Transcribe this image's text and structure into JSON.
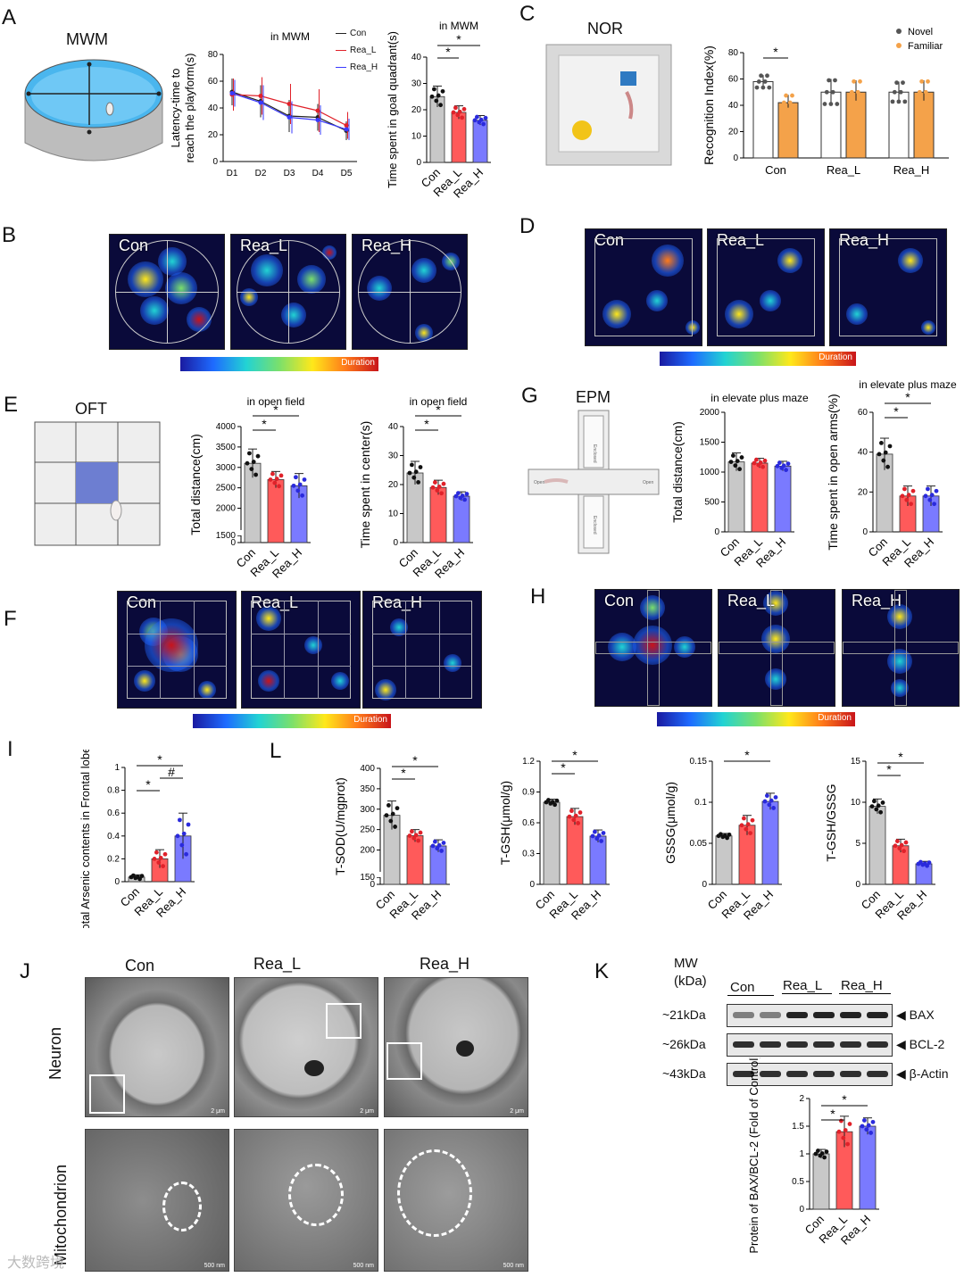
{
  "panel_labels": [
    "A",
    "B",
    "C",
    "D",
    "E",
    "F",
    "G",
    "H",
    "I",
    "J",
    "K",
    "L"
  ],
  "A": {
    "diagram_title": "MWM",
    "legend": [
      "Con",
      "Rea_L",
      "Rea_H"
    ]
  },
  "C": {
    "diagram_title": "NOR"
  },
  "E": {
    "diagram_title": "OFT"
  },
  "G": {
    "diagram_title": "EPM",
    "arm_labels": [
      "Enclosed",
      "Open",
      "Enclosed",
      "Open"
    ]
  },
  "groups": [
    "Con",
    "Rea_L",
    "Rea_H"
  ],
  "colorbar_label": "Duration",
  "J": {
    "cols": [
      "Con",
      "Rea_L",
      "Rea_H"
    ],
    "rows": [
      "Neuron",
      "Mitochondrion"
    ],
    "scale_bars": [
      "2 μm",
      "2 μm",
      "2 μm",
      "500 nm",
      "500 nm",
      "500 nm"
    ]
  },
  "K": {
    "mw_header": "MW\n(kDa)",
    "lanes": [
      "Con",
      "Rea_L",
      "Rea_H"
    ],
    "bands": [
      {
        "mw": "~21kDa",
        "name": "◀ BAX"
      },
      {
        "mw": "~26kDa",
        "name": "◀ BCL-2"
      },
      {
        "mw": "~43kDa",
        "name": "◀ β-Actin"
      }
    ]
  },
  "watermark": "大数跨境",
  "colors": {
    "con": "#c8c8c8",
    "rea_l": "#ff5a5a",
    "rea_h": "#7a7aff",
    "novel": "#555555",
    "familiar": "#f4a24a"
  },
  "chart_data": [
    {
      "id": "A-line",
      "type": "line",
      "title": "in MWM",
      "xlabel": "",
      "ylabel": "Latency-time to reach the playform(s)",
      "categories": [
        "D1",
        "D2",
        "D3",
        "D4",
        "D5"
      ],
      "ylim": [
        0,
        80
      ],
      "yticks": [
        0,
        20,
        40,
        60,
        80
      ],
      "series": [
        {
          "name": "Con",
          "values": [
            52,
            45,
            34,
            33,
            23
          ],
          "err": [
            10,
            12,
            12,
            10,
            7
          ]
        },
        {
          "name": "Rea_L",
          "values": [
            50,
            49,
            43,
            38,
            27
          ],
          "err": [
            12,
            14,
            15,
            16,
            10
          ]
        },
        {
          "name": "Rea_H",
          "values": [
            51,
            44,
            33,
            31,
            24
          ],
          "err": [
            10,
            13,
            12,
            11,
            8
          ]
        }
      ]
    },
    {
      "id": "A-bar",
      "type": "bar",
      "title": "in MWM",
      "ylabel": "Time spent in goal quadrant(s)",
      "categories": [
        "Con",
        "Rea_L",
        "Rea_H"
      ],
      "values": [
        25,
        19,
        16
      ],
      "err": [
        4,
        2.5,
        1.8
      ],
      "ylim": [
        0,
        40
      ],
      "yticks": [
        0,
        10,
        20,
        30,
        40
      ],
      "sig": [
        [
          "*",
          0,
          1
        ],
        [
          "*",
          0,
          2
        ]
      ]
    },
    {
      "id": "C-bar",
      "type": "bar",
      "title": "",
      "ylabel": "Recognition Index(%)",
      "categories": [
        "Con",
        "Rea_L",
        "Rea_H"
      ],
      "ylim": [
        0,
        80
      ],
      "yticks": [
        0,
        20,
        40,
        60,
        80
      ],
      "series": [
        {
          "name": "Novel",
          "values": [
            58,
            50,
            50
          ],
          "err": [
            5,
            10,
            8
          ]
        },
        {
          "name": "Familiar",
          "values": [
            42,
            50,
            50
          ],
          "err": [
            6,
            9,
            9
          ]
        }
      ],
      "sig": [
        [
          "*",
          0,
          0
        ]
      ]
    },
    {
      "id": "E-bar1",
      "type": "bar",
      "title": "in open field",
      "ylabel": "Total distance(cm)",
      "categories": [
        "Con",
        "Rea_L",
        "Rea_H"
      ],
      "values": [
        3100,
        2700,
        2550
      ],
      "err": [
        350,
        200,
        300
      ],
      "yticks": [
        0,
        1500,
        2000,
        2500,
        3000,
        3500,
        4000
      ],
      "sig": [
        [
          "*",
          0,
          1
        ],
        [
          "*",
          0,
          2
        ]
      ]
    },
    {
      "id": "E-bar2",
      "type": "bar",
      "title": "in open field",
      "ylabel": "Time spent in center(s)",
      "categories": [
        "Con",
        "Rea_L",
        "Rea_H"
      ],
      "values": [
        24,
        19,
        16
      ],
      "err": [
        4,
        2.5,
        1.5
      ],
      "ylim": [
        0,
        40
      ],
      "yticks": [
        0,
        10,
        20,
        30,
        40
      ],
      "sig": [
        [
          "*",
          0,
          1
        ],
        [
          "*",
          0,
          2
        ]
      ]
    },
    {
      "id": "G-bar1",
      "type": "bar",
      "title": "in elevate plus maze",
      "ylabel": "Total distance(cm)",
      "categories": [
        "Con",
        "Rea_L",
        "Rea_H"
      ],
      "values": [
        1170,
        1150,
        1100
      ],
      "err": [
        150,
        80,
        80
      ],
      "ylim": [
        0,
        2000
      ],
      "yticks": [
        0,
        500,
        1000,
        1500,
        2000
      ],
      "sig": []
    },
    {
      "id": "G-bar2",
      "type": "bar",
      "title": "in elevate plus maze",
      "ylabel": "Time spent in open arms(%)",
      "categories": [
        "Con",
        "Rea_L",
        "Rea_H"
      ],
      "values": [
        39,
        18,
        18
      ],
      "err": [
        8,
        5,
        5
      ],
      "ylim": [
        0,
        60
      ],
      "yticks": [
        0,
        20,
        40,
        60
      ],
      "sig": [
        [
          "*",
          0,
          1
        ],
        [
          "*",
          0,
          2
        ]
      ]
    },
    {
      "id": "I-bar",
      "type": "bar",
      "title": "",
      "ylabel": "Total Arsenic contents in Frontal lobe (μg/g)",
      "categories": [
        "Con",
        "Rea_L",
        "Rea_H"
      ],
      "values": [
        0.04,
        0.2,
        0.4
      ],
      "err": [
        0.02,
        0.08,
        0.2
      ],
      "ylim": [
        0,
        1
      ],
      "yticks": [
        0,
        0.2,
        0.4,
        0.6,
        0.8,
        1
      ],
      "sig": [
        [
          "*",
          0,
          1
        ],
        [
          "#",
          1,
          2
        ],
        [
          "*",
          0,
          2
        ]
      ]
    },
    {
      "id": "L-bar1",
      "type": "bar",
      "title": "",
      "ylabel": "T-SOD(U/mgprot)",
      "categories": [
        "Con",
        "Rea_L",
        "Rea_H"
      ],
      "values": [
        285,
        235,
        210
      ],
      "err": [
        35,
        15,
        15
      ],
      "yticks": [
        0,
        150,
        200,
        250,
        300,
        350,
        400
      ],
      "sig": [
        [
          "*",
          0,
          1
        ],
        [
          "*",
          0,
          2
        ]
      ]
    },
    {
      "id": "L-bar2",
      "type": "bar",
      "title": "",
      "ylabel": "T-GSH(μmol/g)",
      "categories": [
        "Con",
        "Rea_L",
        "Rea_H"
      ],
      "values": [
        0.8,
        0.66,
        0.47
      ],
      "err": [
        0.03,
        0.08,
        0.06
      ],
      "ylim": [
        0,
        1.2
      ],
      "yticks": [
        0,
        0.3,
        0.6,
        0.9,
        1.2
      ],
      "sig": [
        [
          "*",
          0,
          1
        ],
        [
          "*",
          0,
          2
        ]
      ]
    },
    {
      "id": "L-bar3",
      "type": "bar",
      "title": "",
      "ylabel": "GSSG(μmol/g)",
      "categories": [
        "Con",
        "Rea_L",
        "Rea_H"
      ],
      "values": [
        0.059,
        0.072,
        0.101
      ],
      "err": [
        0.003,
        0.012,
        0.01
      ],
      "ylim": [
        0,
        0.15
      ],
      "yticks": [
        0,
        0.05,
        0.1,
        0.15
      ],
      "sig": [
        [
          "*",
          0,
          2
        ]
      ]
    },
    {
      "id": "L-bar4",
      "type": "bar",
      "title": "",
      "ylabel": "T-GSH/GSSG",
      "categories": [
        "Con",
        "Rea_L",
        "Rea_H"
      ],
      "values": [
        9.5,
        4.7,
        2.5
      ],
      "err": [
        0.9,
        0.8,
        0.3
      ],
      "ylim": [
        0,
        15
      ],
      "yticks": [
        0,
        5,
        10,
        15
      ],
      "sig": [
        [
          "*",
          0,
          1
        ],
        [
          "*",
          0,
          2
        ]
      ]
    },
    {
      "id": "K-bar",
      "type": "bar",
      "title": "",
      "ylabel": "Protein of BAX/BCL-2 (Fold of Control)",
      "categories": [
        "Con",
        "Rea_L",
        "Rea_H"
      ],
      "values": [
        1.0,
        1.4,
        1.5
      ],
      "err": [
        0.08,
        0.28,
        0.15
      ],
      "ylim": [
        0,
        2
      ],
      "yticks": [
        0,
        0.5,
        1,
        1.5,
        2
      ],
      "sig": [
        [
          "*",
          0,
          1
        ],
        [
          "*",
          0,
          2
        ]
      ]
    }
  ]
}
